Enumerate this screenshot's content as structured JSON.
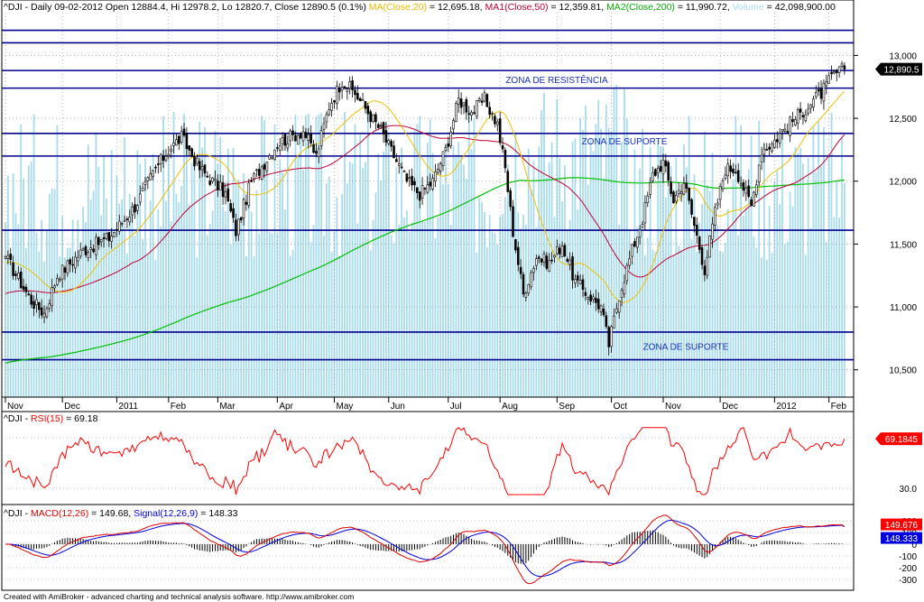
{
  "main_header": {
    "symbol": "^DJI - Daily 09-02-2012 Open 12884.4, Hi 12978.2, Lo 12820.7, Close 12890.5 (0.1%)",
    "ma_label": "MA(Close,20)",
    "ma_value": " = 12,695.18,",
    "ma1_label": "MA1(Close,50)",
    "ma1_value": " = 12,359.81,",
    "ma2_label": "MA2(Close,200)",
    "ma2_value": " = 11,990.72,",
    "vol_label": "Volume",
    "vol_value": " = 42,098,900.00"
  },
  "rsi_header": {
    "prefix": "^DJI - ",
    "label": "RSI(15)",
    "value": " = 69.18"
  },
  "macd_header": {
    "prefix": "^DJI - ",
    "label": "MACD(12,26)",
    "value": " = 149.68, ",
    "signal_label": "Signal(12,26,9)",
    "signal_value": " = 148.33"
  },
  "footer": "Created with AmiBroker - advanced charting and technical analysis software. http://www.amibroker.com",
  "colors": {
    "candle": "#000000",
    "ma20": "#f0c000",
    "ma50": "#c00030",
    "ma200": "#00c000",
    "volume": "#a8dcec",
    "zone": "#000090",
    "zone_text": "#1830c0",
    "rsi": "#ff0000",
    "macd": "#e00000",
    "signal": "#0000e0",
    "histogram": "#000000"
  },
  "chart_data": [
    {
      "type": "candlestick",
      "y_ticks": [
        "13,000",
        "12,500",
        "12,000",
        "11,500",
        "11,000",
        "10,500"
      ],
      "ylim": [
        10300,
        13300
      ],
      "last_close_label": "12,890.5",
      "x_ticks": [
        "Nov",
        "Dec",
        "2011",
        "Feb",
        "Mar",
        "Apr",
        "May",
        "Jun",
        "Jul",
        "Aug",
        "Sep",
        "Oct",
        "Nov",
        "Dec",
        "2012",
        "Feb"
      ],
      "x_tick_index": [
        0,
        22,
        43,
        63,
        82,
        105,
        127,
        148,
        171,
        191,
        213,
        234,
        254,
        276,
        297,
        318
      ],
      "annotations": [
        {
          "text": "ZONA DE RESISTÊNCIA",
          "price": 12810
        },
        {
          "text": "ZONA DE SUPORTE",
          "price": 12320
        },
        {
          "text": "ZONA DE SUPORTE",
          "price": 10690
        }
      ],
      "horizontal_lines": [
        13200,
        13100,
        12880,
        12740,
        12380,
        12200,
        11610,
        10800,
        10580
      ],
      "anchors": [
        [
          0,
          11400
        ],
        [
          10,
          11050
        ],
        [
          15,
          10950
        ],
        [
          20,
          11250
        ],
        [
          30,
          11450
        ],
        [
          40,
          11550
        ],
        [
          50,
          11800
        ],
        [
          58,
          12100
        ],
        [
          63,
          12250
        ],
        [
          68,
          12350
        ],
        [
          75,
          12100
        ],
        [
          85,
          11900
        ],
        [
          89,
          11600
        ],
        [
          95,
          12000
        ],
        [
          105,
          12300
        ],
        [
          115,
          12400
        ],
        [
          120,
          12200
        ],
        [
          125,
          12600
        ],
        [
          130,
          12800
        ],
        [
          135,
          12700
        ],
        [
          140,
          12550
        ],
        [
          145,
          12400
        ],
        [
          150,
          12200
        ],
        [
          155,
          12000
        ],
        [
          160,
          11900
        ],
        [
          165,
          12000
        ],
        [
          170,
          12250
        ],
        [
          175,
          12650
        ],
        [
          180,
          12550
        ],
        [
          185,
          12650
        ],
        [
          190,
          12450
        ],
        [
          193,
          12100
        ],
        [
          196,
          11600
        ],
        [
          200,
          11100
        ],
        [
          205,
          11400
        ],
        [
          210,
          11350
        ],
        [
          215,
          11500
        ],
        [
          220,
          11200
        ],
        [
          225,
          11100
        ],
        [
          230,
          11000
        ],
        [
          233,
          10700
        ],
        [
          237,
          11100
        ],
        [
          242,
          11450
        ],
        [
          246,
          11700
        ],
        [
          250,
          12050
        ],
        [
          254,
          12150
        ],
        [
          258,
          11850
        ],
        [
          262,
          12000
        ],
        [
          266,
          11650
        ],
        [
          270,
          11300
        ],
        [
          274,
          11750
        ],
        [
          278,
          12100
        ],
        [
          282,
          12100
        ],
        [
          285,
          11950
        ],
        [
          288,
          11800
        ],
        [
          292,
          12250
        ],
        [
          296,
          12300
        ],
        [
          300,
          12400
        ],
        [
          305,
          12500
        ],
        [
          310,
          12600
        ],
        [
          315,
          12700
        ],
        [
          320,
          12850
        ],
        [
          324,
          12890.5
        ]
      ],
      "volume_level_range": [
        0.35,
        0.75
      ]
    },
    {
      "type": "line",
      "name": "RSI(15)",
      "y_ticks": [
        "30.0"
      ],
      "last_value_label": "69.1845",
      "value": 69.18
    },
    {
      "type": "line",
      "name": "MACD(12,26)",
      "y_ticks": [
        "200",
        "100",
        "0",
        "-100",
        "-200",
        "-300"
      ],
      "ylim": [
        -330,
        220
      ],
      "macd_label": "149.676",
      "signal_label": "148.333",
      "macd_value": 149.68,
      "signal_value": 148.33
    }
  ]
}
